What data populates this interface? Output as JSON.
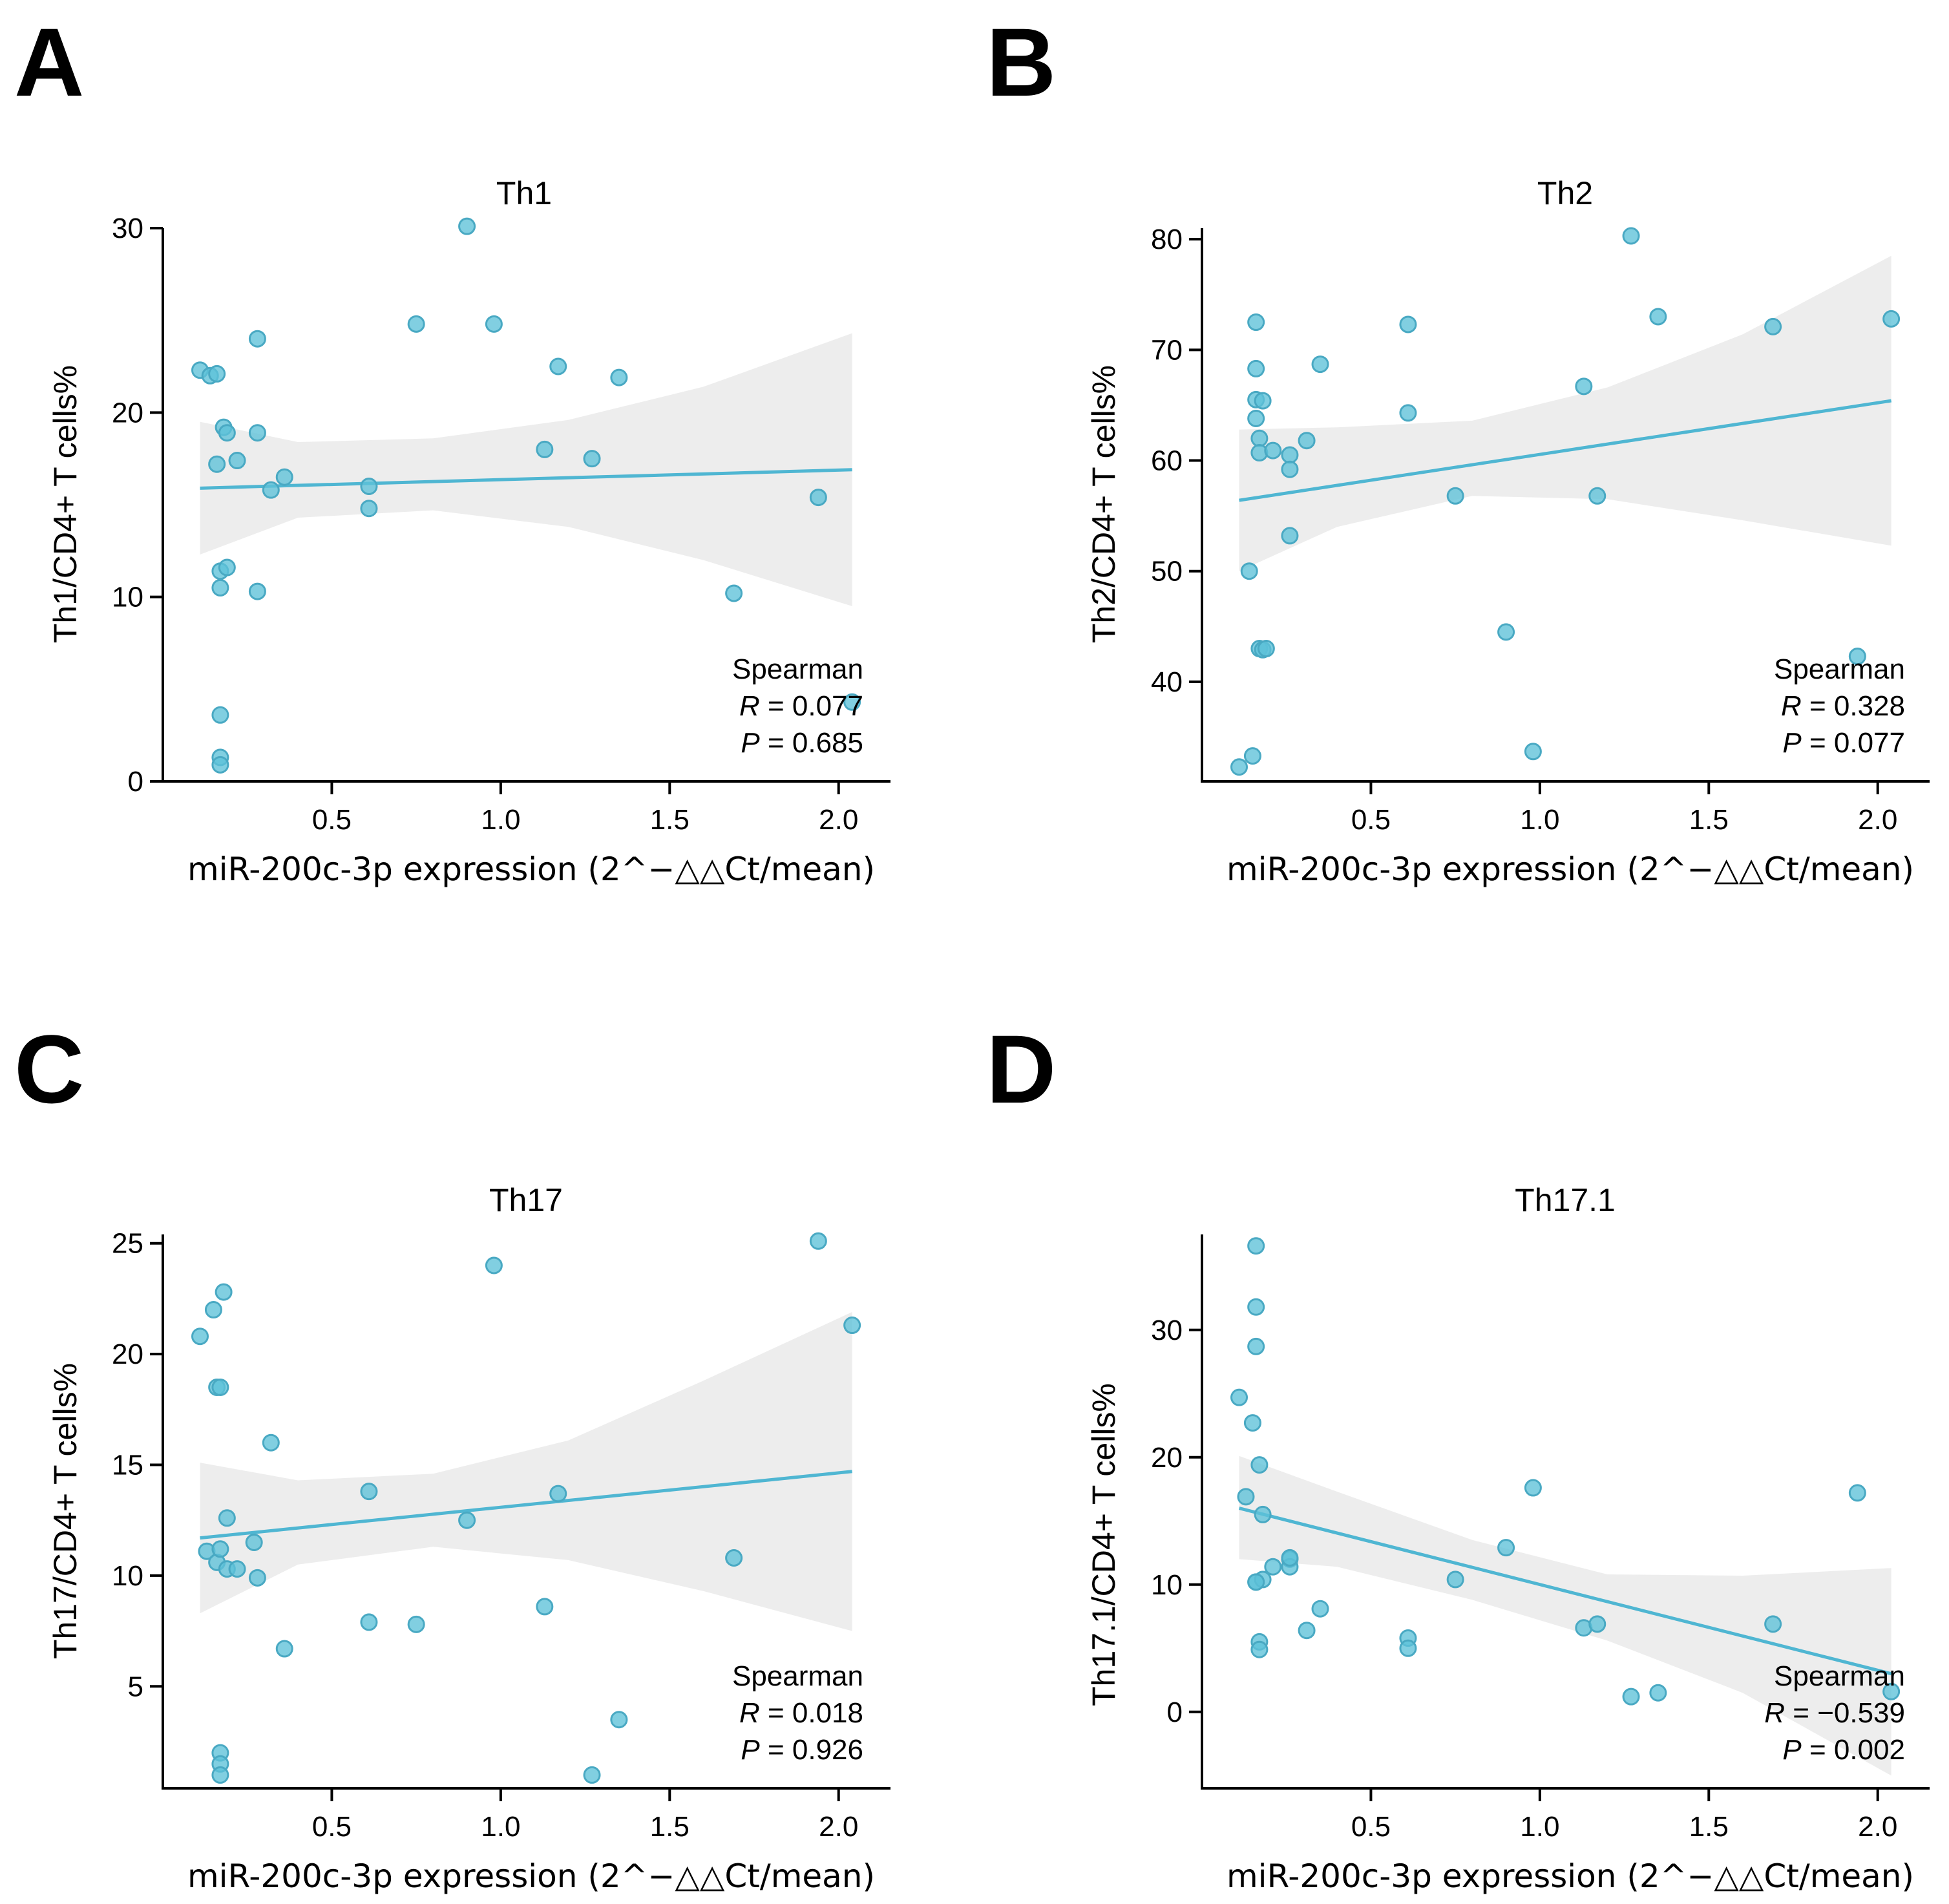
{
  "colors": {
    "point": "#5ec1d9",
    "line": "#4fb6d2",
    "band": "#ebebeb"
  },
  "chart_data": [
    {
      "panel": "A",
      "type": "scatter",
      "title": "Th1",
      "xlabel": "miR-200c-3p expression (2^−△△Ct/mean)",
      "ylabel": "Th1/CD4+ T cells%",
      "xlim": [
        0.0,
        2.1
      ],
      "xticks": [
        0.5,
        1.0,
        1.5,
        2.0
      ],
      "xtick_labels": [
        "0.5",
        "1.0",
        "1.5",
        "2.0"
      ],
      "ylim": [
        0,
        30
      ],
      "yticks": [
        0,
        10,
        20,
        30
      ],
      "ytick_labels": [
        "0",
        "10",
        "20",
        "30"
      ],
      "stat_method": "Spearman",
      "stat_r_label": "R",
      "stat_r_value": "0.077",
      "stat_p_label": "P",
      "stat_p_value": "0.685",
      "x": [
        0.11,
        0.14,
        0.16,
        0.16,
        0.18,
        0.19,
        0.22,
        0.28,
        0.28,
        0.17,
        0.19,
        0.17,
        0.28,
        0.32,
        0.36,
        0.17,
        0.17,
        0.17,
        0.61,
        0.61,
        0.75,
        0.9,
        0.98,
        1.13,
        1.17,
        1.27,
        1.35,
        1.69,
        1.94,
        2.04
      ],
      "y": [
        22.3,
        22.0,
        22.1,
        17.2,
        19.2,
        18.9,
        17.4,
        24.0,
        18.9,
        11.4,
        11.6,
        10.5,
        10.3,
        15.8,
        16.5,
        3.6,
        1.3,
        0.9,
        16.0,
        14.8,
        24.8,
        30.1,
        24.8,
        18.0,
        22.5,
        17.5,
        21.9,
        10.2,
        15.4,
        4.3
      ],
      "fit": {
        "x": [
          0.11,
          2.04
        ],
        "y": [
          15.9,
          16.9
        ]
      },
      "band": {
        "x": [
          0.11,
          0.4,
          0.8,
          1.2,
          1.6,
          2.04
        ],
        "lower": [
          12.3,
          14.3,
          14.7,
          13.8,
          12.0,
          9.5
        ],
        "upper": [
          19.5,
          18.4,
          18.6,
          19.6,
          21.4,
          24.3
        ]
      }
    },
    {
      "panel": "B",
      "type": "scatter",
      "title": "Th2",
      "xlabel": "miR-200c-3p expression (2^−△△Ct/mean)",
      "ylabel": "Th2/CD4+ T cells%",
      "xlim": [
        0.0,
        2.1
      ],
      "xticks": [
        0.5,
        1.0,
        1.5,
        2.0
      ],
      "xtick_labels": [
        "0.5",
        "1.0",
        "1.5",
        "2.0"
      ],
      "ylim": [
        31,
        81
      ],
      "yticks": [
        40,
        50,
        60,
        70,
        80
      ],
      "ytick_labels": [
        "40",
        "50",
        "60",
        "70",
        "80"
      ],
      "stat_method": "Spearman",
      "stat_r_label": "R",
      "stat_r_value": "0.328",
      "stat_p_label": "P",
      "stat_p_value": "0.077",
      "x": [
        0.11,
        0.14,
        0.15,
        0.16,
        0.16,
        0.16,
        0.16,
        0.17,
        0.17,
        0.17,
        0.18,
        0.18,
        0.19,
        0.21,
        0.26,
        0.26,
        0.26,
        0.31,
        0.35,
        0.61,
        0.61,
        0.75,
        0.9,
        0.98,
        1.13,
        1.17,
        1.27,
        1.35,
        1.69,
        1.94,
        2.04
      ],
      "y": [
        32.3,
        50.0,
        33.3,
        72.5,
        68.3,
        65.5,
        63.8,
        62.0,
        60.7,
        43.0,
        65.4,
        42.9,
        43.0,
        60.9,
        60.5,
        59.2,
        53.2,
        61.8,
        68.7,
        72.3,
        64.3,
        56.8,
        44.5,
        33.7,
        66.7,
        56.8,
        80.3,
        73.0,
        72.1,
        42.3,
        72.8
      ],
      "fit": {
        "x": [
          0.11,
          2.04
        ],
        "y": [
          56.4,
          65.4
        ]
      },
      "band": {
        "x": [
          0.11,
          0.4,
          0.8,
          1.2,
          1.6,
          2.04
        ],
        "lower": [
          50.0,
          54.0,
          56.8,
          56.5,
          54.6,
          52.3
        ],
        "upper": [
          62.8,
          63.0,
          63.6,
          66.6,
          71.4,
          78.5
        ]
      }
    },
    {
      "panel": "C",
      "type": "scatter",
      "title": "Th17",
      "xlabel": "miR-200c-3p expression (2^−△△Ct/mean)",
      "ylabel": "Th17/CD4+ T cells%",
      "xlim": [
        0.0,
        2.1
      ],
      "xticks": [
        0.5,
        1.0,
        1.5,
        2.0
      ],
      "xtick_labels": [
        "0.5",
        "1.0",
        "1.5",
        "2.0"
      ],
      "ylim": [
        0.4,
        25.4
      ],
      "yticks": [
        5,
        10,
        15,
        20,
        25
      ],
      "ytick_labels": [
        "5",
        "10",
        "15",
        "20",
        "25"
      ],
      "stat_method": "Spearman",
      "stat_r_label": "R",
      "stat_r_value": "0.018",
      "stat_p_label": "P",
      "stat_p_value": "0.926",
      "x": [
        0.11,
        0.13,
        0.15,
        0.16,
        0.17,
        0.18,
        0.19,
        0.16,
        0.17,
        0.19,
        0.22,
        0.27,
        0.28,
        0.32,
        0.36,
        0.17,
        0.17,
        0.17,
        0.61,
        0.61,
        0.75,
        0.9,
        0.98,
        1.13,
        1.17,
        1.27,
        1.35,
        1.69,
        1.94,
        2.04
      ],
      "y": [
        20.8,
        11.1,
        22.0,
        18.5,
        18.5,
        22.8,
        12.6,
        10.6,
        11.2,
        10.3,
        10.3,
        11.5,
        9.9,
        16.0,
        6.7,
        2.0,
        1.5,
        1.0,
        7.9,
        13.8,
        7.8,
        12.5,
        24.0,
        8.6,
        13.7,
        1.0,
        3.5,
        10.8,
        25.1,
        21.3
      ],
      "fit": {
        "x": [
          0.11,
          2.04
        ],
        "y": [
          11.7,
          14.7
        ]
      },
      "band": {
        "x": [
          0.11,
          0.4,
          0.8,
          1.2,
          1.6,
          2.04
        ],
        "lower": [
          8.3,
          10.5,
          11.3,
          10.7,
          9.3,
          7.5
        ],
        "upper": [
          15.1,
          14.3,
          14.6,
          16.1,
          18.8,
          21.9
        ]
      }
    },
    {
      "panel": "D",
      "type": "scatter",
      "title": "Th17.1",
      "xlabel": "miR-200c-3p expression (2^−△△Ct/mean)",
      "ylabel": "Th17.1/CD4+ T cells%",
      "xlim": [
        0.0,
        2.1
      ],
      "xticks": [
        0.5,
        1.0,
        1.5,
        2.0
      ],
      "xtick_labels": [
        "0.5",
        "1.0",
        "1.5",
        "2.0"
      ],
      "ylim": [
        -6,
        37.5
      ],
      "yticks": [
        0,
        10,
        20,
        30
      ],
      "ytick_labels": [
        "0",
        "10",
        "20",
        "30"
      ],
      "stat_method": "Spearman",
      "stat_r_label": "R",
      "stat_r_value": "−0.539",
      "stat_p_label": "P",
      "stat_p_value": "0.002",
      "x": [
        0.11,
        0.13,
        0.15,
        0.16,
        0.16,
        0.16,
        0.16,
        0.17,
        0.17,
        0.17,
        0.18,
        0.18,
        0.16,
        0.21,
        0.26,
        0.26,
        0.26,
        0.31,
        0.35,
        0.61,
        0.61,
        0.75,
        0.9,
        0.98,
        1.13,
        1.17,
        1.27,
        1.35,
        1.69,
        1.94,
        2.04
      ],
      "y": [
        24.7,
        16.9,
        22.7,
        36.6,
        31.8,
        28.7,
        10.2,
        19.4,
        5.5,
        4.9,
        15.5,
        10.4,
        10.2,
        11.4,
        12.0,
        11.4,
        12.1,
        6.4,
        8.1,
        5.8,
        5.0,
        10.4,
        12.9,
        17.6,
        6.6,
        6.9,
        1.2,
        1.5,
        6.9,
        17.2,
        1.6
      ],
      "fit": {
        "x": [
          0.11,
          2.04
        ],
        "y": [
          16.0,
          3.0
        ]
      },
      "band": {
        "x": [
          0.11,
          0.4,
          0.8,
          1.2,
          1.6,
          2.04
        ],
        "lower": [
          12.0,
          11.4,
          8.8,
          5.6,
          1.5,
          -5.0
        ],
        "upper": [
          20.1,
          17.3,
          13.5,
          10.8,
          10.7,
          11.3
        ]
      }
    }
  ]
}
